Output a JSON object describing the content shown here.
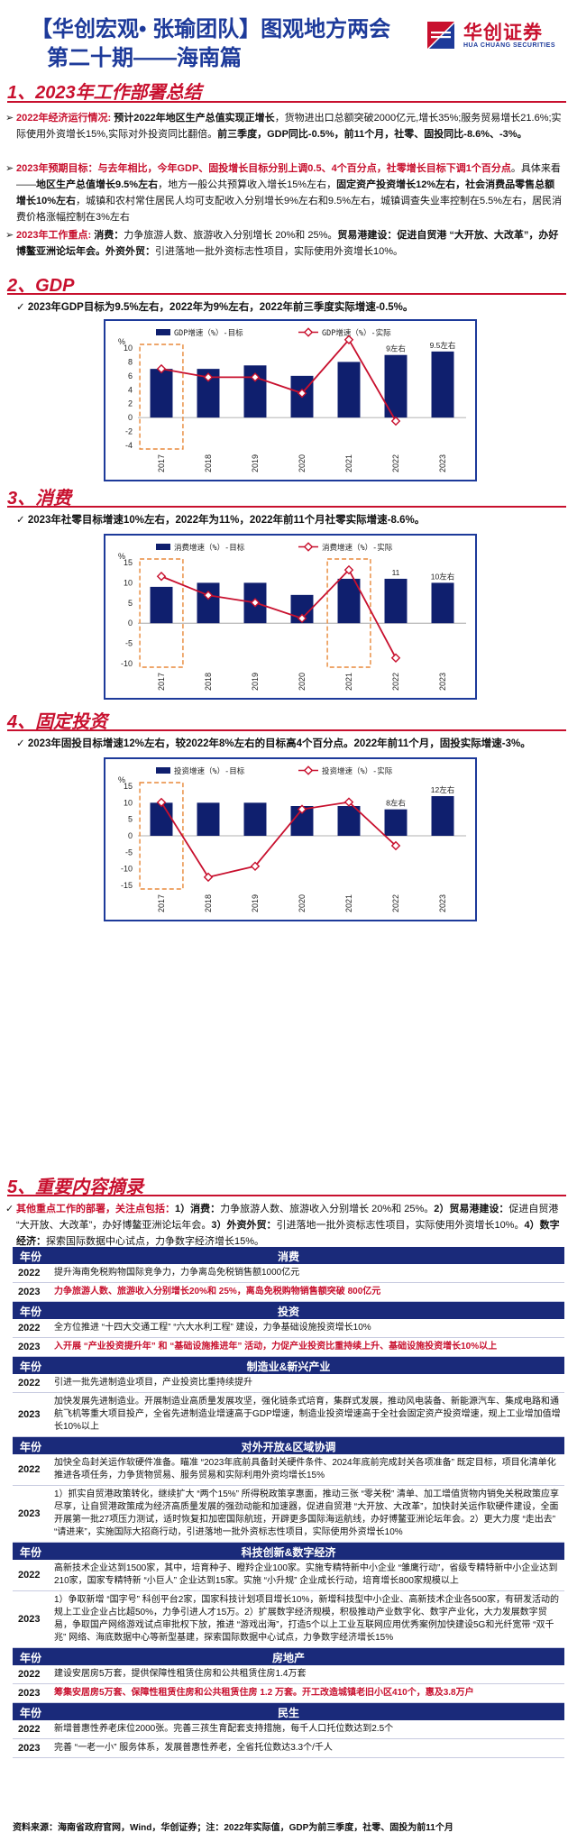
{
  "header": {
    "title": "【华创宏观• 张瑜团队】图观地方两会",
    "subtitle": "第二十期——海南篇",
    "logo_cn": "华创证券",
    "logo_en": "HUA CHUANG SECURITIES"
  },
  "sections": {
    "s1": "1、2023年工作部署总结",
    "s2": "2、GDP",
    "s3": "3、消费",
    "s4": "4、固定投资",
    "s5": "5、重要内容摘录"
  },
  "summary": {
    "p1_label": "2022年经济运行情况:",
    "p1_a": "预计2022年地区生产总值实现正增长",
    "p1_b": "，货物进出口总额突破2000亿元,增长35%;服务贸易增长21.6%;实际使用外资增长15%,实际对外投资同比翻倍。",
    "p1_c": "前三季度，GDP同比-0.5%，前11个月，社零、固投同比-8.6%、-3%。",
    "p2_label": "2023年预期目标：与去年相比，今年GDP、固投增长目标分别上调0.5、4个百分点，社零增长目标下调1个百分点",
    "p2_a": "。具体来看——",
    "p2_b": "地区生产总值增长9.5%左右",
    "p2_c": "，地方一般公共预算收入增长15%左右，",
    "p2_d": "固定资产投资增长12%左右，社会消费品零售总额增长10%左右",
    "p2_e": "，城镇和农村常住居民人均可支配收入分别增长9%左右和9.5%左右，城镇调查失业率控制在5.5%左右，居民消费价格涨幅控制在3%左右",
    "p3_label": "2023年工作重点:",
    "p3_a": "消费：",
    "p3_b": "力争旅游人数、旅游收入分别增长 20%和 25%。",
    "p3_c": "贸易港建设：促进自贸港 “大开放、大改革”，办好博鳌亚洲论坛年会。外资外贸：",
    "p3_d": "引进落地一批外资标志性项目，实际使用外资增长10%。"
  },
  "gdp_note": "2023年GDP目标为9.5%左右，2022年为9%左右，2022年前三季度实际增速-0.5%。",
  "cons_note": "2023年社零目标增速10%左右，2022年为11%，2022年前11个月社零实际增速-8.6%。",
  "inv_note": "2023年固投目标增速12%左右，较2022年8%左右的目标高4个百分点。2022年前11个月，固投实际增速-3%。",
  "s5_note": {
    "a": "其他重点工作的部署，关注点包括：",
    "b": "1）消费：",
    "c": "力争旅游人数、旅游收入分别增长 20%和 25%。",
    "d": "2）贸易港建设：",
    "e": "促进自贸港 “大开放、大改革”，办好博鳌亚洲论坛年会。",
    "f": "3）外资外贸：",
    "g": "引进落地一批外资标志性项目，实际使用外资增长10%。",
    "h": "4）数字经济：",
    "i": "探索国际数据中心试点，力争数字经济增长15%。"
  },
  "chart_data": [
    {
      "type": "bar",
      "ylabel": "%",
      "categories": [
        "2017",
        "2018",
        "2019",
        "2020",
        "2021",
        "2022",
        "2023"
      ],
      "ylim": [
        -4,
        10
      ],
      "yticks": [
        -4,
        -2,
        0,
        2,
        4,
        6,
        8,
        10
      ],
      "series": [
        {
          "name": "GDP增速（%）-目标",
          "kind": "bar",
          "values": [
            7,
            7,
            7.5,
            6,
            8,
            9,
            9.5
          ]
        },
        {
          "name": "GDP增速（%）-实际",
          "kind": "line",
          "values": [
            7,
            5.8,
            5.8,
            3.5,
            11.2,
            -0.5,
            null
          ]
        }
      ],
      "bar_labels": {
        "5": "9左右",
        "6": "9.5左右"
      },
      "highlight": [
        0
      ],
      "chart_labels": {
        "x_ticks": [
          "2017",
          "2018",
          "2019",
          "2020",
          "2021",
          "2022",
          "2023"
        ],
        "y_ticks": [
          "-4",
          "-2",
          "0",
          "2",
          "4",
          "6",
          "8",
          "10"
        ]
      },
      "display_ylim": [
        -4,
        10
      ]
    },
    {
      "type": "bar",
      "ylabel": "%",
      "categories": [
        "2017",
        "2018",
        "2019",
        "2020",
        "2021",
        "2022",
        "2023"
      ],
      "ylim": [
        -10,
        15
      ],
      "yticks": [
        -10,
        -5,
        0,
        5,
        10,
        15
      ],
      "series": [
        {
          "name": "消费增速（%）-目标",
          "kind": "bar",
          "values": [
            9,
            10,
            10,
            7,
            11,
            11,
            10
          ]
        },
        {
          "name": "消费增速（%）-实际",
          "kind": "line",
          "values": [
            11.6,
            6.9,
            5.1,
            1.2,
            13.2,
            -8.6,
            null
          ]
        }
      ],
      "bar_labels": {
        "5": "11",
        "6": "10左右"
      },
      "highlight": [
        0,
        4
      ],
      "chart_labels": {
        "x_ticks": [
          "2017",
          "2018",
          "2019",
          "2020",
          "2021",
          "2022",
          "2023"
        ],
        "y_ticks": [
          "-10",
          "-5",
          "0",
          "5",
          "10",
          "15"
        ]
      },
      "display_ylim": [
        -10,
        15
      ]
    },
    {
      "type": "bar",
      "ylabel": "%",
      "categories": [
        "2017",
        "2018",
        "2019",
        "2020",
        "2021",
        "2022",
        "2023"
      ],
      "ylim": [
        -15,
        15
      ],
      "yticks": [
        -15,
        -10,
        -5,
        0,
        5,
        10,
        15
      ],
      "series": [
        {
          "name": "投资增速（%）-目标",
          "kind": "bar",
          "values": [
            10,
            10,
            10,
            9,
            9,
            8,
            12
          ]
        },
        {
          "name": "投资增速（%）-实际",
          "kind": "line",
          "values": [
            10.1,
            -12.5,
            -9.2,
            8.0,
            10.2,
            -3,
            null
          ]
        }
      ],
      "bar_labels": {
        "5": "8左右",
        "6": "12左右"
      },
      "highlight": [
        0
      ],
      "chart_labels": {
        "x_ticks": [
          "2017",
          "2018",
          "2019",
          "2020",
          "2021",
          "2022",
          "2023"
        ],
        "y_ticks": [
          "-15",
          "-10",
          "-5",
          "0",
          "5",
          "10",
          "15"
        ]
      },
      "display_ylim": [
        -15,
        15
      ]
    }
  ],
  "table": {
    "year_header": "年份",
    "groups": [
      {
        "title": "消费",
        "rows": [
          {
            "year": "2022",
            "text": "提升海南免税购物国际竞争力，力争离岛免税销售额1000亿元",
            "red": false
          },
          {
            "year": "2023",
            "text": "力争旅游人数、旅游收入分别增长20%和 25%，离岛免税购物销售额突破 800亿元",
            "red": true
          }
        ]
      },
      {
        "title": "投资",
        "rows": [
          {
            "year": "2022",
            "text": "全方位推进 “十四大交通工程” “六大水利工程” 建设，力争基础设施投资增长10%",
            "red": false
          },
          {
            "year": "2023",
            "text": "入开展 “产业投资提升年” 和 “基础设施推进年” 活动，力促产业投资比重持续上升、基础设施投资增长10%以上",
            "red": true
          }
        ]
      },
      {
        "title": "制造业&新兴产业",
        "rows": [
          {
            "year": "2022",
            "text": "引进一批先进制造业项目，产业投资比重持续提升",
            "red": false
          },
          {
            "year": "2023",
            "text": "加快发展先进制造业。开展制造业高质量发展攻坚，强化链条式培育，集群式发展，推动风电装备、新能源汽车、集成电路和通航飞机等重大项目投产，全省先进制造业增速高于GDP增速，制造业投资增速高于全社会固定资产投资增速，规上工业增加值增长10%以上",
            "red": false
          }
        ]
      },
      {
        "title": "对外开放&区域协调",
        "rows": [
          {
            "year": "2022",
            "text": "加快全岛封关运作软硬件准备。瞄准 “2023年底前具备封关硬件条件、2024年底前完成封关各项准备” 既定目标，项目化清单化推进各项任务，力争货物贸易、服务贸易和实际利用外资均增长15%",
            "red": false
          },
          {
            "year": "2023",
            "text": "1）抓实自贸港政策转化，继续扩大 “两个15%” 所得税政策享惠面，推动三张 “零关税” 清单、加工增值货物内销免关税政策应享尽享，让自贸港政策成为经济高质量发展的强劲动能和加速器，促进自贸港 “大开放、大改革”，加快封关运作软硬件建设，全面开展第一批27项压力测试，适时恢复扣加密国际航班，开辟更多国际海运航线，办好博鳌亚洲论坛年会。2）更大力度 “走出去” “请进来”，实施国际大招商行动，引进落地一批外资标志性项目，实际使用外资增长10%",
            "red": false
          }
        ]
      },
      {
        "title": "科技创新&数字经济",
        "rows": [
          {
            "year": "2022",
            "text": "高新技术企业达到1500家，其中，培育种子、瞪羚企业100家。实施专精特新中小企业 “雏鹰行动”，省级专精特新中小企业达到210家，国家专精特新 “小巨人” 企业达到15家。实施 “小升规” 企业成长行动，培育增长800家规模以上",
            "red": false
          },
          {
            "year": "2023",
            "text": "1）争取新增 “国字号” 科创平台2家，国家科技计划项目增长10%，新增科技型中小企业、高新技术企业各500家，有研发活动的规上工业企业占比超50%，力争引进人才15万。2）扩展数字经济规模，积极推动产业数字化、数字产业化，大力发展数字贸易，争取国产网络游戏试点审批权下放，推进 “游戏出海”，打造5个以上工业互联网应用优秀案例加快建设5G和光纤宽带 “双千兆” 网络、海底数据中心等新型基建，探索国际数据中心试点，力争数字经济增长15%",
            "red": false
          }
        ]
      },
      {
        "title": "房地产",
        "rows": [
          {
            "year": "2022",
            "text": "建设安居房5万套，提供保障性租赁住房和公共租赁住房1.4万套",
            "red": false
          },
          {
            "year": "2023",
            "text": "筹集安居房5万套、保障性租赁住房和公共租赁住房 1.2 万套。开工改造城镇老旧小区410个，惠及3.8万户",
            "red": true
          }
        ]
      },
      {
        "title": "民生",
        "rows": [
          {
            "year": "2022",
            "text": "新增普惠性养老床位2000张。完善三孩生育配套支持措施，每千人口托位数达到2.5个",
            "red": false
          },
          {
            "year": "2023",
            "text": "完善 “一老一小” 服务体系，发展普惠性养老，全省托位数达3.3个/千人",
            "red": false
          }
        ]
      }
    ]
  },
  "footer": "资料来源：海南省政府官网，Wind，华创证券；注：2022年实际值，GDP为前三季度，社零、固投为前11个月",
  "colors": {
    "bar": "#0f1f6e",
    "line": "#c8102e",
    "accent": "#1d3a9a",
    "red": "#c8102e"
  }
}
